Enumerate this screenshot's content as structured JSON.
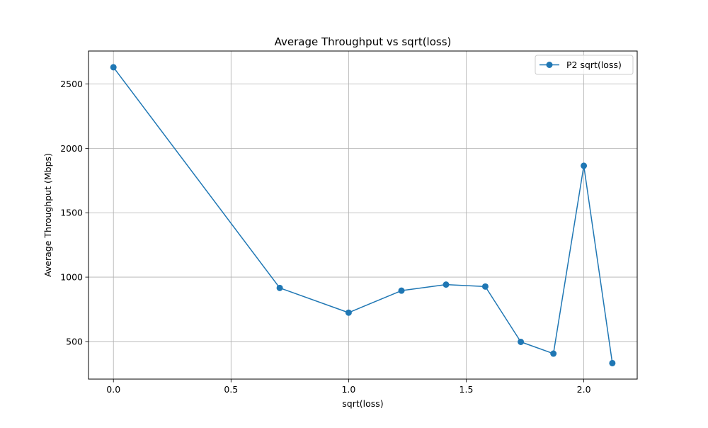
{
  "chart_data": {
    "type": "line",
    "title": "Average Throughput vs sqrt(loss)",
    "xlabel": "sqrt(loss)",
    "ylabel": "Average Throughput (Mbps)",
    "xlim": [
      -0.106,
      2.227
    ],
    "ylim": [
      208,
      2756
    ],
    "xticks": [
      0.0,
      0.5,
      1.0,
      1.5,
      2.0
    ],
    "xtick_labels": [
      "0.0",
      "0.5",
      "1.0",
      "1.5",
      "2.0"
    ],
    "yticks": [
      500,
      1000,
      1500,
      2000,
      2500
    ],
    "ytick_labels": [
      "500",
      "1000",
      "1500",
      "2000",
      "2500"
    ],
    "grid": true,
    "legend_position": "top-right",
    "series": [
      {
        "name": "P2 sqrt(loss)",
        "color": "#1f77b4",
        "marker": "circle",
        "x": [
          0.0,
          0.7071,
          1.0,
          1.2247,
          1.4142,
          1.5811,
          1.7321,
          1.8708,
          2.0,
          2.1213
        ],
        "y": [
          2630,
          916,
          724,
          895,
          942,
          927,
          497,
          406,
          1865,
          332
        ]
      }
    ]
  }
}
